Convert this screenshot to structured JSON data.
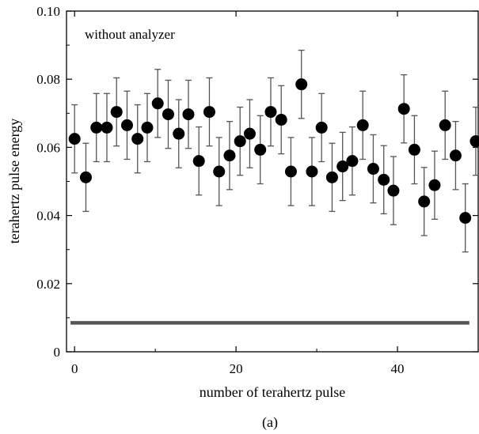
{
  "chart_data": {
    "type": "scatter",
    "title": "",
    "caption": "(a)",
    "xlabel": "number of terahertz pulse",
    "ylabel": "terahertz pulse energy",
    "annotation": "without analyzer",
    "xlim": [
      -1,
      50
    ],
    "ylim": [
      0,
      0.1
    ],
    "xticks": [
      0,
      20,
      40
    ],
    "xtick_labels": [
      "0",
      "20",
      "40"
    ],
    "yticks": [
      0,
      0.02,
      0.04,
      0.06,
      0.08,
      0.1
    ],
    "ytick_labels": [
      "0",
      "0.02",
      "0.04",
      "0.06",
      "0.08",
      "0.10"
    ],
    "grid": false,
    "series": [
      {
        "marker": "filled-circle",
        "color": "#000000",
        "errorbar_color": "#555555",
        "errorbar": 0.01,
        "x": [
          0,
          1.4,
          2.7,
          4.0,
          5.2,
          6.5,
          7.8,
          9.0,
          10.3,
          11.6,
          12.9,
          14.1,
          15.4,
          16.7,
          17.9,
          19.2,
          20.5,
          21.7,
          23.0,
          24.3,
          25.6,
          26.8,
          28.1,
          29.4,
          30.6,
          31.9,
          33.2,
          34.4,
          35.7,
          37.0,
          38.3,
          39.5,
          40.8,
          42.1,
          43.3,
          44.6,
          45.9,
          47.2,
          48.4,
          49.7
        ],
        "y": [
          0.0625,
          0.0512,
          0.0658,
          0.0658,
          0.0704,
          0.0665,
          0.0625,
          0.0658,
          0.0729,
          0.0697,
          0.064,
          0.0697,
          0.056,
          0.0704,
          0.0529,
          0.0576,
          0.0618,
          0.064,
          0.0593,
          0.0704,
          0.0681,
          0.0529,
          0.0785,
          0.0529,
          0.0658,
          0.0512,
          0.0544,
          0.056,
          0.0665,
          0.0537,
          0.0505,
          0.0473,
          0.0713,
          0.0593,
          0.0441,
          0.0489,
          0.0665,
          0.0576,
          0.0393,
          0.0618
        ]
      },
      {
        "type": "line",
        "color": "#555555",
        "x": [
          -0.5,
          48.9
        ],
        "y": [
          0.0085,
          0.0085
        ]
      }
    ]
  }
}
